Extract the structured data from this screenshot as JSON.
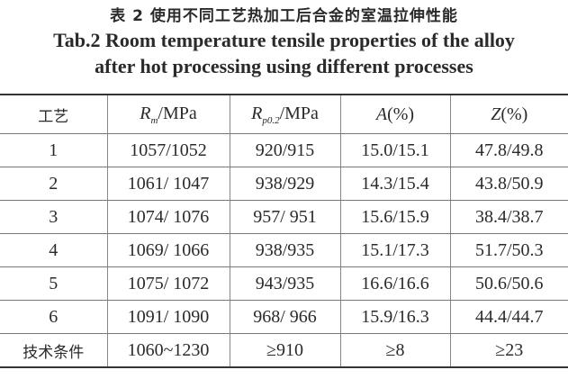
{
  "caption": {
    "cn": "表 2  使用不同工艺热加工后合金的室温拉伸性能",
    "en_line1": "Tab.2  Room temperature tensile properties of the alloy",
    "en_line2": "after hot processing using different processes"
  },
  "table": {
    "headers": {
      "process": "工艺",
      "rm_sym": "R",
      "rm_sub": "m",
      "rm_unit": "/MPa",
      "rp_sym": "R",
      "rp_sub": "p0.2",
      "rp_unit": "/MPa",
      "a_sym": "A",
      "a_unit": "(%)",
      "z_sym": "Z",
      "z_unit": "(%)"
    },
    "rows": [
      [
        "1",
        "1057/1052",
        "920/915",
        "15.0/15.1",
        "47.8/49.8"
      ],
      [
        "2",
        "1061/ 1047",
        "938/929",
        "14.3/15.4",
        "43.8/50.9"
      ],
      [
        "3",
        "1074/ 1076",
        "957/ 951",
        "15.6/15.9",
        "38.4/38.7"
      ],
      [
        "4",
        "1069/ 1066",
        "938/935",
        "15.1/17.3",
        "51.7/50.3"
      ],
      [
        "5",
        "1075/ 1072",
        "943/935",
        "16.6/16.6",
        "50.6/50.6"
      ],
      [
        "6",
        "1091/ 1090",
        "968/ 966",
        "15.9/16.3",
        "44.4/44.7"
      ],
      [
        "技术条件",
        "1060~1230",
        "≥910",
        "≥8",
        "≥23"
      ]
    ]
  }
}
